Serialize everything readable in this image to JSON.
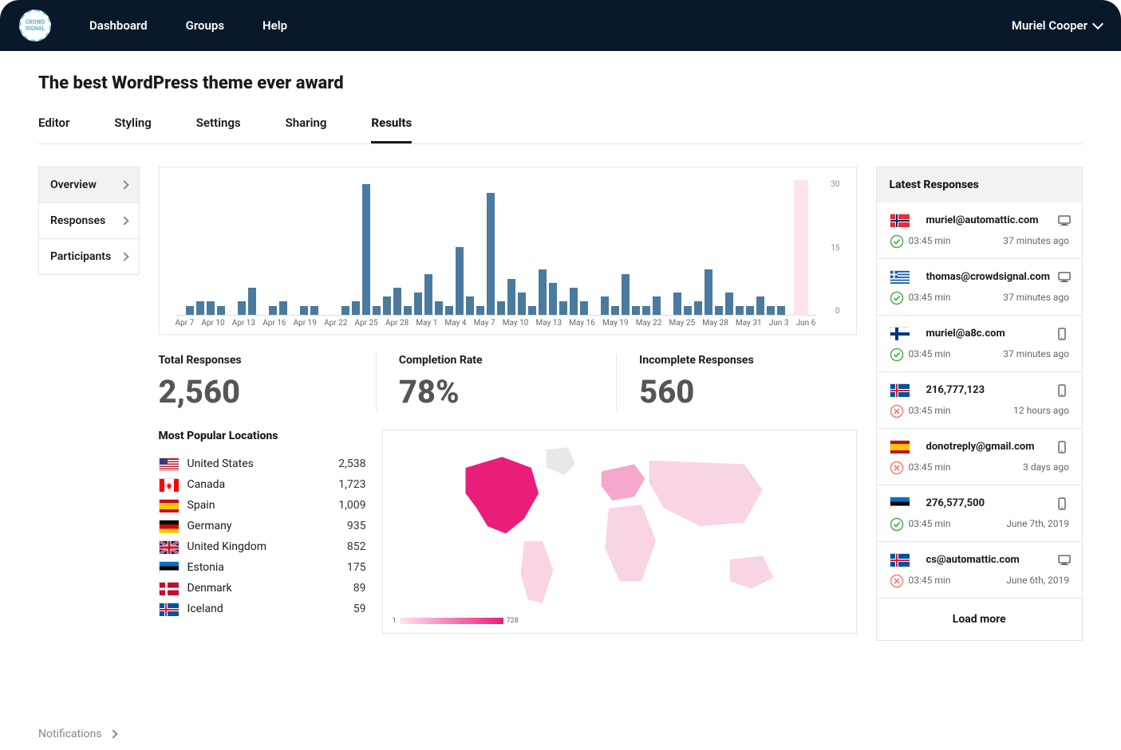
{
  "nav": {
    "links": [
      "Dashboard",
      "Groups",
      "Help"
    ],
    "user": "Muriel Cooper"
  },
  "page": {
    "title": "The best WordPress theme ever award",
    "tabs": [
      "Editor",
      "Styling",
      "Settings",
      "Sharing",
      "Results"
    ],
    "active_tab": 4
  },
  "sidebar": {
    "items": [
      "Overview",
      "Responses",
      "Participants"
    ],
    "active": 0
  },
  "chart": {
    "type": "bar",
    "bar_color": "#4a7a9e",
    "highlight_color": "#fde4ef",
    "background": "#ffffff",
    "ylim": [
      0,
      30
    ],
    "ytick_step": 15,
    "yaxis_labels": [
      "30",
      "15",
      "0"
    ],
    "x_labels": [
      "Apr 7",
      "Apr 10",
      "Apr 13",
      "Apr 16",
      "Apr 19",
      "Apr 22",
      "Apr 25",
      "Apr 28",
      "May 1",
      "May 4",
      "May 7",
      "May 10",
      "May 13",
      "May 16",
      "May 19",
      "May 22",
      "May 25",
      "May 28",
      "May 31",
      "Jun 3",
      "Jun 6"
    ],
    "values": [
      0,
      2,
      3,
      3,
      2,
      0,
      3,
      6,
      0,
      2,
      3,
      0,
      2,
      2,
      0,
      0,
      2,
      3,
      29,
      2,
      4,
      6,
      2,
      5,
      9,
      3,
      2,
      15,
      4,
      2,
      27,
      3,
      8,
      5,
      2,
      10,
      7,
      3,
      6,
      3,
      0,
      4,
      2,
      9,
      2,
      2,
      4,
      0,
      5,
      2,
      3,
      10,
      2,
      5,
      2,
      2,
      4,
      2,
      2,
      0,
      0,
      0
    ]
  },
  "stats": {
    "total_label": "Total Responses",
    "total_value": "2,560",
    "completion_label": "Completion Rate",
    "completion_value": "78%",
    "incomplete_label": "Incomplete Responses",
    "incomplete_value": "560"
  },
  "locations": {
    "title": "Most Popular Locations",
    "rows": [
      {
        "flag": "us",
        "name": "United States",
        "count": "2,538"
      },
      {
        "flag": "ca",
        "name": "Canada",
        "count": "1,723"
      },
      {
        "flag": "es",
        "name": "Spain",
        "count": "1,009"
      },
      {
        "flag": "de",
        "name": "Germany",
        "count": "935"
      },
      {
        "flag": "gb",
        "name": "United Kingdom",
        "count": "852"
      },
      {
        "flag": "ee",
        "name": "Estonia",
        "count": "175"
      },
      {
        "flag": "dk",
        "name": "Denmark",
        "count": "89"
      },
      {
        "flag": "is",
        "name": "Iceland",
        "count": "59"
      }
    ]
  },
  "map": {
    "legend_min": "1",
    "legend_max": "728",
    "base_color": "#f9d4e5",
    "mid_color": "#f4a8cb",
    "hot_color": "#e91e7b",
    "neutral_color": "#e8e8e8"
  },
  "latest": {
    "title": "Latest Responses",
    "load_more": "Load more",
    "items": [
      {
        "flag": "no",
        "email": "muriel@automattic.com",
        "device": "desktop",
        "status": "ok",
        "time": "03:45 min",
        "ago": "37 minutes ago"
      },
      {
        "flag": "gr",
        "email": "thomas@crowdsignal.com",
        "device": "desktop",
        "status": "ok",
        "time": "03:45 min",
        "ago": "37 minutes ago"
      },
      {
        "flag": "fi",
        "email": "muriel@a8c.com",
        "device": "mobile",
        "status": "ok",
        "time": "03:45 min",
        "ago": "37 minutes ago"
      },
      {
        "flag": "is",
        "email": "216,777,123",
        "device": "mobile",
        "status": "fail",
        "time": "03:45 min",
        "ago": "12 hours ago"
      },
      {
        "flag": "es",
        "email": "donotreply@gmail.com",
        "device": "mobile",
        "status": "fail",
        "time": "03:45 min",
        "ago": "3 days ago"
      },
      {
        "flag": "ee",
        "email": "276,577,500",
        "device": "mobile",
        "status": "ok",
        "time": "03:45 min",
        "ago": "June 7th, 2019"
      },
      {
        "flag": "is",
        "email": "cs@automattic.com",
        "device": "desktop",
        "status": "fail",
        "time": "03:45 min",
        "ago": "June 6th, 2019"
      }
    ]
  },
  "bottom": {
    "notifications": "Notifications"
  },
  "colors": {
    "navbar_bg": "#0a1929",
    "accent_green": "#4caf50",
    "accent_red": "#f08070"
  }
}
